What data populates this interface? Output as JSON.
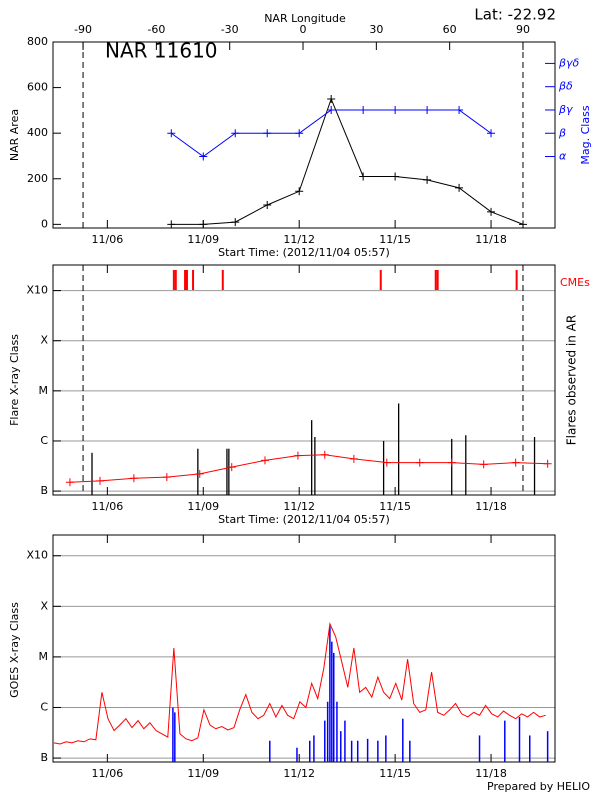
{
  "chart_data": [
    {
      "type": "line",
      "title": "NAR 11610",
      "annotation": "Lat: -22.92",
      "xlabel": "Start Time: (2012/11/04 05:57)",
      "ylabel": "NAR Area",
      "y2label": "Mag. Class",
      "x2label": "NAR Longitude",
      "xlim": [
        0.3,
        16.0
      ],
      "xticks": [
        {
          "value": 2,
          "label": "11/06"
        },
        {
          "value": 5,
          "label": "11/09"
        },
        {
          "value": 8,
          "label": "11/12"
        },
        {
          "value": 11,
          "label": "11/15"
        },
        {
          "value": 14,
          "label": "11/18"
        }
      ],
      "x2lim": [
        -102.3,
        103.1
      ],
      "x2ticks": [
        -90,
        -60,
        -30,
        0,
        30,
        60,
        90
      ],
      "ylim": [
        -16,
        800
      ],
      "yticks": [
        0,
        200,
        400,
        600,
        800
      ],
      "y2lim": [
        -1.07,
        6.92
      ],
      "y2ticks": [
        {
          "value": 2,
          "label": "α"
        },
        {
          "value": 3,
          "label": "β"
        },
        {
          "value": 4,
          "label": "βγ"
        },
        {
          "value": 5,
          "label": "βδ"
        },
        {
          "value": 6,
          "label": "βγδ"
        }
      ],
      "series": [
        {
          "color": "#000000",
          "x": [
            4,
            5,
            6,
            7,
            8,
            9,
            10,
            11,
            12,
            13,
            14,
            15
          ],
          "values": [
            0,
            0,
            10,
            85,
            145,
            550,
            210,
            210,
            195,
            160,
            55,
            0
          ]
        },
        {
          "color": "#0000ff",
          "axis": "y2",
          "x": [
            4,
            5,
            6,
            7,
            8,
            9,
            10,
            11,
            12,
            13,
            14
          ],
          "values": [
            3,
            2,
            3,
            3,
            3,
            4,
            4,
            4,
            4,
            4,
            3
          ]
        }
      ]
    },
    {
      "type": "events",
      "log": true,
      "grid": true,
      "xlabel": "Start Time: (2012/11/04 05:57)",
      "ylabel": "Flare X-ray Class",
      "y2label": "Flares observed in AR",
      "xlim": [
        0.3,
        16.0
      ],
      "xticks": [
        {
          "value": 2,
          "label": "11/06"
        },
        {
          "value": 5,
          "label": "11/09"
        },
        {
          "value": 8,
          "label": "11/12"
        },
        {
          "value": 11,
          "label": "11/15"
        },
        {
          "value": 14,
          "label": "11/18"
        }
      ],
      "ylim": [
        8.35e-08,
        0.00324
      ],
      "yticks": [
        {
          "value": 1e-07,
          "label": "B"
        },
        {
          "value": 1e-06,
          "label": "C"
        },
        {
          "value": 1e-05,
          "label": "M"
        },
        {
          "value": 0.0001,
          "label": "X"
        },
        {
          "value": 0.001,
          "label": "X10"
        }
      ],
      "flares": {
        "color": "#000000",
        "x": [
          1.52,
          4.83,
          5.74,
          5.8,
          8.39,
          8.49,
          10.64,
          11.11,
          12.77,
          13.21,
          15.36
        ],
        "values": [
          5.8e-07,
          7e-07,
          7e-07,
          7e-07,
          2.6e-06,
          1.2e-06,
          1e-06,
          5.6e-06,
          1.1e-06,
          1.3e-06,
          1.2e-06
        ]
      },
      "trend": {
        "color": "#ff0000",
        "x": [
          0.83,
          1.77,
          2.83,
          3.86,
          4.89,
          5.89,
          6.93,
          7.96,
          8.8,
          9.71,
          10.74,
          11.77,
          12.77,
          13.77,
          14.77,
          15.77
        ],
        "values": [
          1.5e-07,
          1.6e-07,
          1.8e-07,
          1.9e-07,
          2.2e-07,
          3e-07,
          4.1e-07,
          5.1e-07,
          5.3e-07,
          4.4e-07,
          3.7e-07,
          3.7e-07,
          3.7e-07,
          3.4e-07,
          3.7e-07,
          3.5e-07
        ]
      },
      "cmes": {
        "label": "CMEs",
        "color": "#ff0000",
        "x": [
          4.08,
          4.14,
          4.43,
          4.49,
          4.68,
          5.61,
          10.55,
          12.27,
          12.33,
          14.8
        ]
      }
    },
    {
      "type": "timeseries",
      "log": true,
      "grid": true,
      "ylabel": "GOES X-ray Class",
      "xlim": [
        0.3,
        16.0
      ],
      "xticks": [
        {
          "value": 2,
          "label": "11/06"
        },
        {
          "value": 5,
          "label": "11/09"
        },
        {
          "value": 8,
          "label": "11/12"
        },
        {
          "value": 11,
          "label": "11/15"
        },
        {
          "value": 14,
          "label": "11/18"
        }
      ],
      "ylim": [
        8.36e-08,
        0.00257
      ],
      "yticks": [
        {
          "value": 1e-07,
          "label": "B"
        },
        {
          "value": 1e-06,
          "label": "C"
        },
        {
          "value": 1e-05,
          "label": "M"
        },
        {
          "value": 0.0001,
          "label": "X"
        },
        {
          "value": 0.001,
          "label": "X10"
        }
      ],
      "series": [
        {
          "color": "#ff0000",
          "x": [
            0.33,
            0.52,
            0.71,
            0.89,
            1.08,
            1.27,
            1.46,
            1.64,
            1.83,
            2.02,
            2.21,
            2.39,
            2.58,
            2.77,
            2.96,
            3.14,
            3.33,
            3.52,
            3.71,
            3.89,
            4.08,
            4.27,
            4.46,
            4.64,
            4.83,
            5.02,
            5.21,
            5.39,
            5.58,
            5.77,
            5.96,
            6.14,
            6.33,
            6.52,
            6.71,
            6.89,
            7.08,
            7.27,
            7.46,
            7.64,
            7.83,
            8.02,
            8.21,
            8.39,
            8.58,
            8.77,
            8.96,
            9.14,
            9.33,
            9.52,
            9.71,
            9.89,
            10.08,
            10.27,
            10.46,
            10.64,
            10.83,
            11.02,
            11.21,
            11.39,
            11.58,
            11.77,
            11.96,
            12.14,
            12.33,
            12.52,
            12.71,
            12.89,
            13.08,
            13.27,
            13.46,
            13.64,
            13.83,
            14.02,
            14.21,
            14.39,
            14.58,
            14.77,
            14.96,
            15.14,
            15.33,
            15.52,
            15.71
          ],
          "values": [
            2e-07,
            1.9e-07,
            2.1e-07,
            2e-07,
            2.2e-07,
            2.1e-07,
            2.4e-07,
            2.3e-07,
            2e-06,
            6e-07,
            3.5e-07,
            4.5e-07,
            6e-07,
            4e-07,
            5.5e-07,
            3.8e-07,
            5e-07,
            3.5e-07,
            3e-07,
            2.6e-07,
            1.5e-05,
            3e-07,
            2.4e-07,
            2.2e-07,
            2.5e-07,
            9e-07,
            4.5e-07,
            3.8e-07,
            4.2e-07,
            3.6e-07,
            4e-07,
            9e-07,
            1.8e-06,
            8e-07,
            6e-07,
            7e-07,
            1.2e-06,
            6.5e-07,
            1.1e-06,
            7e-07,
            6e-07,
            1.3e-06,
            1e-06,
            3e-06,
            1.5e-06,
            6e-06,
            4.5e-05,
            2.5e-05,
            8e-06,
            2.5e-06,
            1.5e-05,
            2e-06,
            2.5e-06,
            1.6e-06,
            4e-06,
            2e-06,
            1.5e-06,
            3e-06,
            1.4e-06,
            9e-06,
            1.2e-06,
            8e-07,
            9e-07,
            5e-06,
            8e-07,
            7e-07,
            9e-07,
            1.2e-06,
            7.5e-07,
            6.5e-07,
            8e-07,
            7e-07,
            1.1e-06,
            7.5e-07,
            6.5e-07,
            8.5e-07,
            7e-07,
            6e-07,
            7.5e-07,
            6.5e-07,
            8e-07,
            6.5e-07,
            7e-07
          ]
        }
      ],
      "flares": {
        "color": "#0000ff",
        "x": [
          4.05,
          4.11,
          7.08,
          7.93,
          8.33,
          8.46,
          8.8,
          8.89,
          8.96,
          9.02,
          9.08,
          9.18,
          9.3,
          9.43,
          9.64,
          9.83,
          10.14,
          10.46,
          10.71,
          11.24,
          11.46,
          13.64,
          14.43,
          14.89,
          15.21,
          15.77
        ],
        "values": [
          1e-06,
          8e-07,
          2.2e-07,
          1.6e-07,
          2.2e-07,
          2.8e-07,
          5.5e-07,
          1.3e-06,
          4e-05,
          2e-05,
          1.2e-05,
          1.3e-06,
          3.4e-07,
          5.5e-07,
          2.2e-07,
          2.2e-07,
          2.4e-07,
          2.2e-07,
          2.8e-07,
          6e-07,
          2.2e-07,
          2.8e-07,
          5.5e-07,
          6.5e-07,
          2.8e-07,
          3.4e-07
        ]
      }
    }
  ],
  "footer": "Prepared by HELIO"
}
